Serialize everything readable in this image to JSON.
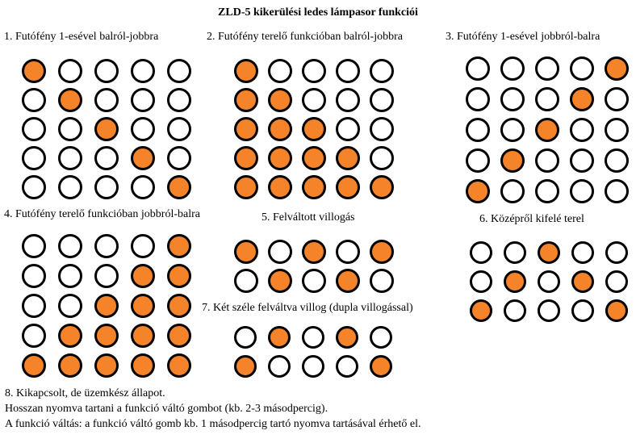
{
  "title": "ZLD-5 kikerülési ledes lámpasor funkciói",
  "colors": {
    "led_on": "#f5832a",
    "led_off": "#ffffff",
    "led_border": "#000000"
  },
  "patterns": [
    {
      "caption": "1.  Futófény 1-esével balról-jobbra",
      "rows": [
        [
          1,
          0,
          0,
          0,
          0
        ],
        [
          0,
          1,
          0,
          0,
          0
        ],
        [
          0,
          0,
          1,
          0,
          0
        ],
        [
          0,
          0,
          0,
          1,
          0
        ],
        [
          0,
          0,
          0,
          0,
          1
        ]
      ]
    },
    {
      "caption": "2.  Futófény terelő funkcióban balról-jobbra",
      "rows": [
        [
          1,
          0,
          0,
          0,
          0
        ],
        [
          1,
          1,
          0,
          0,
          0
        ],
        [
          1,
          1,
          1,
          0,
          0
        ],
        [
          1,
          1,
          1,
          1,
          0
        ],
        [
          1,
          1,
          1,
          1,
          1
        ]
      ]
    },
    {
      "caption": "3.  Futófény 1-esével jobbról-balra",
      "rows": [
        [
          0,
          0,
          0,
          0,
          1
        ],
        [
          0,
          0,
          0,
          1,
          0
        ],
        [
          0,
          0,
          1,
          0,
          0
        ],
        [
          0,
          1,
          0,
          0,
          0
        ],
        [
          1,
          0,
          0,
          0,
          0
        ]
      ]
    },
    {
      "caption": "4. Futófény terelő funkcióban jobbról-balra",
      "rows": [
        [
          0,
          0,
          0,
          0,
          1
        ],
        [
          0,
          0,
          0,
          1,
          1
        ],
        [
          0,
          0,
          1,
          1,
          1
        ],
        [
          0,
          1,
          1,
          1,
          1
        ],
        [
          1,
          1,
          1,
          1,
          1
        ]
      ]
    },
    {
      "caption": "5.  Felváltott villogás",
      "rows": [
        [
          1,
          0,
          1,
          0,
          1
        ],
        [
          0,
          1,
          0,
          1,
          0
        ]
      ]
    },
    {
      "caption": "6.  Középről kifelé terel",
      "rows": [
        [
          0,
          0,
          1,
          0,
          0
        ],
        [
          0,
          1,
          0,
          1,
          0
        ],
        [
          1,
          0,
          0,
          0,
          1
        ]
      ]
    },
    {
      "caption": "7.  Két széle felváltva villog (dupla villogással)",
      "rows": [
        [
          0,
          1,
          0,
          1,
          0
        ],
        [
          1,
          0,
          0,
          0,
          1
        ]
      ]
    }
  ],
  "footer": {
    "line1": "8. Kikapcsolt, de üzemkész állapot.",
    "line2": "Hosszan nyomva tartani a funkció váltó gombot (kb. 2-3 másodpercig).",
    "line3": "A funkció váltás: a funkció váltó gomb kb. 1 másodpercig tartó nyomva tartásával érhető el."
  }
}
